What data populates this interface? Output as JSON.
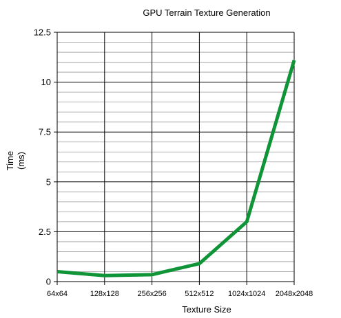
{
  "chart_data": {
    "type": "line",
    "title": "GPU Terrain Texture Generation",
    "xlabel": "Texture Size",
    "ylabel_lines": [
      "Time",
      "(ms)"
    ],
    "categories": [
      "64x64",
      "128x128",
      "256x256",
      "512x512",
      "1024x1024",
      "2048x2048"
    ],
    "series": [
      {
        "values": [
          0.5,
          0.3,
          0.35,
          0.9,
          3.0,
          11.1
        ],
        "color": "#0f9438"
      }
    ],
    "ylim": [
      0,
      12.5
    ],
    "yticks": [
      0,
      2.5,
      5,
      7.5,
      10,
      12.5
    ],
    "ytick_labels": [
      "0",
      "2.5",
      "5",
      "7.5",
      "10",
      "12.5"
    ],
    "minor_grid_step": 0.5,
    "grid": true,
    "colors": {
      "major_grid": "#000000",
      "minor_grid": "#9a9a9a"
    }
  }
}
